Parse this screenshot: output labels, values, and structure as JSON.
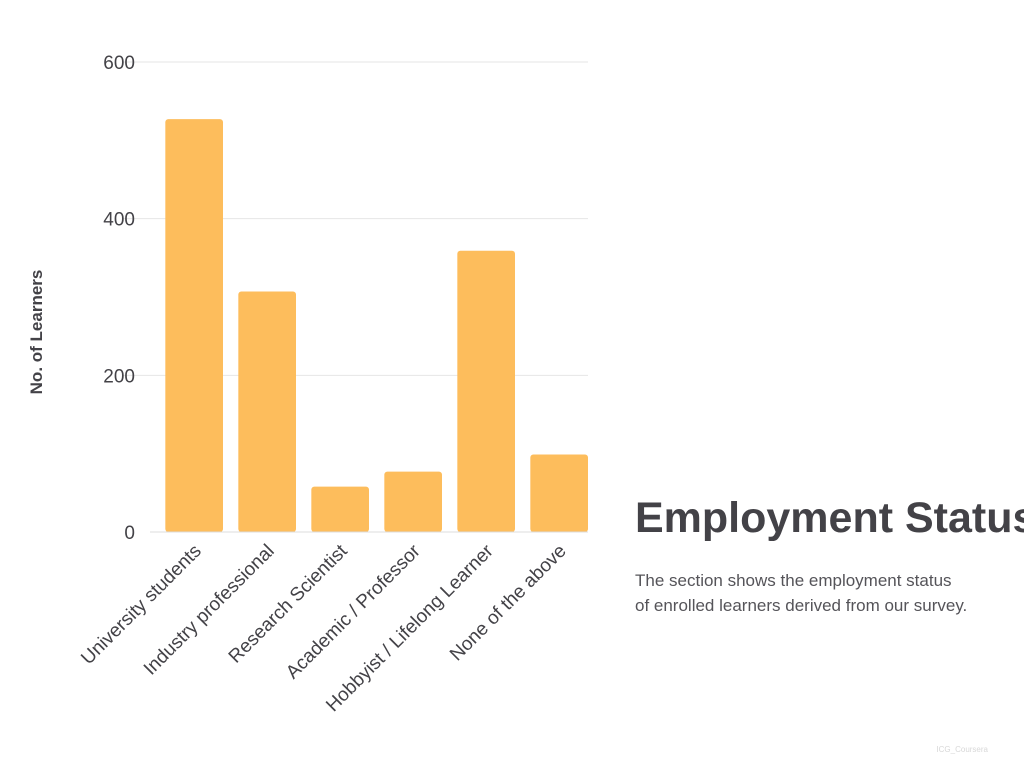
{
  "chart_data": {
    "type": "bar",
    "categories": [
      "University students",
      "Industry professional",
      "Research Scientist",
      "Academic / Professor",
      "Hobbyist / Lifelong Learner",
      "None of the above"
    ],
    "values": [
      527,
      307,
      58,
      77,
      359,
      99
    ],
    "ylabel": "No. of Learners",
    "xlabel": "",
    "ylim": [
      0,
      600
    ],
    "yticks": [
      0,
      200,
      400,
      600
    ],
    "grid": true,
    "bar_color": "#fdbd5c",
    "grid_color": "#e6e6e6",
    "text_color": "#434247"
  },
  "section": {
    "title": "Employment Status",
    "description": "The section shows the employment status\nof enrolled learners derived from our survey."
  },
  "watermark": "ICG_Coursera"
}
